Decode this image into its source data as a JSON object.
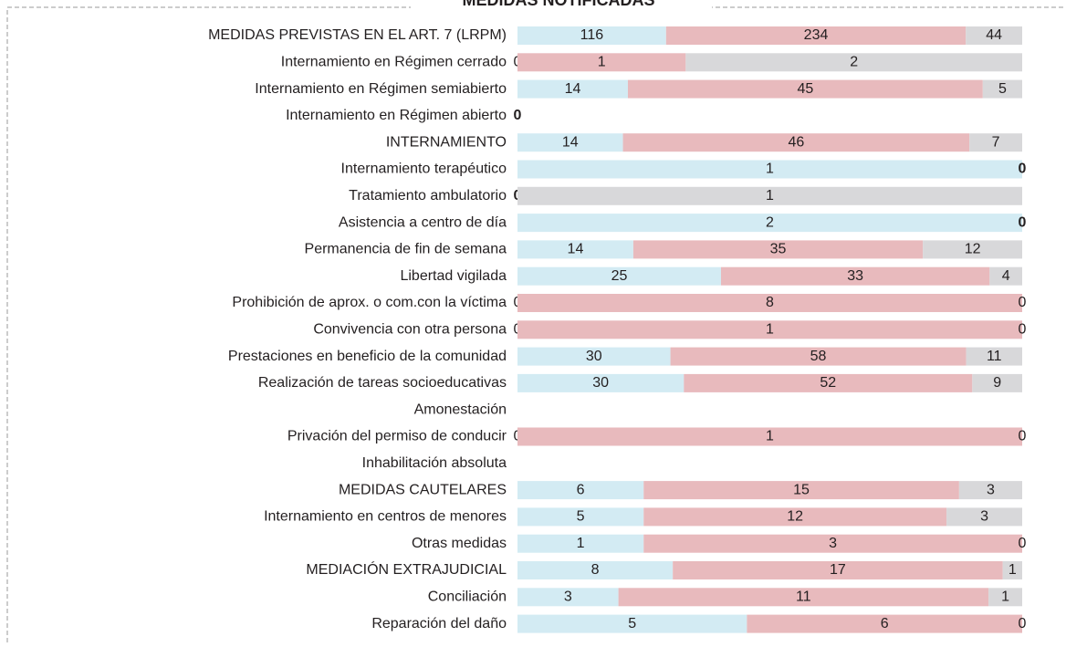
{
  "chart_data": {
    "type": "stacked_bar_100",
    "title": "MEDIDAS NOTIFICADAS",
    "categories": [
      "MEDIDAS PREVISTAS EN EL ART. 7 (LRPM)",
      "Internamiento en Régimen cerrado",
      "Internamiento en Régimen semiabierto",
      "Internamiento en Régimen abierto",
      "INTERNAMIENTO",
      "Internamiento terapéutico",
      "Tratamiento ambulatorio",
      "Asistencia a centro de día",
      "Permanencia de fin de semana",
      "Libertad vigilada",
      "Prohibición de aprox. o com.con la víctima",
      "Convivencia con otra persona",
      "Prestaciones en beneficio de la comunidad",
      "Realización de tareas socioeducativas",
      "Amonestación",
      "Privación del permiso de conducir",
      "Inhabilitación absoluta",
      "MEDIDAS CAUTELARES",
      "Internamiento en centros de menores",
      "Otras medidas",
      "MEDIACIÓN EXTRAJUDICIAL",
      "Conciliación",
      "Reparación del daño"
    ],
    "series": [
      {
        "color": "#d3ebf3",
        "values": [
          116,
          0,
          14,
          0,
          14,
          1,
          0,
          2,
          14,
          25,
          0,
          0,
          30,
          30,
          null,
          0,
          null,
          6,
          5,
          1,
          8,
          3,
          5
        ]
      },
      {
        "color": "#e8babd",
        "values": [
          234,
          1,
          45,
          null,
          46,
          null,
          null,
          null,
          35,
          33,
          8,
          1,
          58,
          52,
          null,
          1,
          null,
          15,
          12,
          3,
          17,
          11,
          6
        ]
      },
      {
        "color": "#d8d8da",
        "values": [
          44,
          2,
          5,
          null,
          7,
          0,
          1,
          0,
          12,
          4,
          0,
          0,
          11,
          9,
          null,
          0,
          null,
          3,
          3,
          0,
          1,
          1,
          0
        ]
      }
    ]
  }
}
